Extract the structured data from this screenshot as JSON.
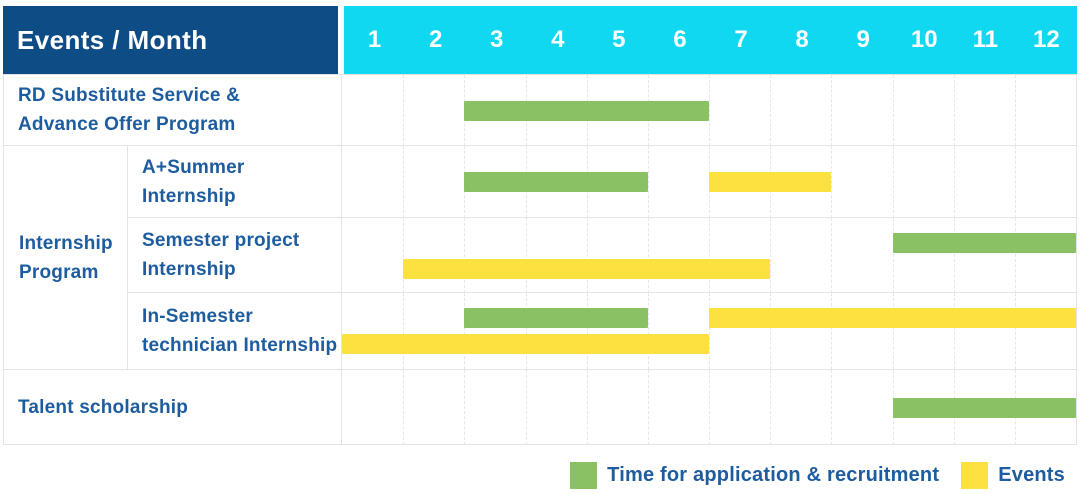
{
  "header": {
    "title": "Events / Month"
  },
  "colors": {
    "header_bg": "#0e4c86",
    "month_header_bg": "#10d8f1",
    "application_green": "#8ac164",
    "events_yellow": "#fde23f",
    "label_text": "#1d5c9e",
    "grid_line": "#e6e6e6"
  },
  "chart_data": {
    "type": "gantt",
    "title": "Events / Month",
    "x_axis": {
      "label": "Month",
      "ticks": [
        "1",
        "2",
        "3",
        "4",
        "5",
        "6",
        "7",
        "8",
        "9",
        "10",
        "11",
        "12"
      ],
      "range": [
        1,
        12
      ]
    },
    "group_labels": {
      "Internship Program": "Internship\nProgram"
    },
    "rows": [
      {
        "group": "",
        "label": "RD Substitute Service &\nAdvance Offer Program",
        "lines": 1,
        "bars": [
          {
            "series": "application",
            "start_month": 3,
            "end_month": 6,
            "line": 0
          }
        ]
      },
      {
        "group": "Internship Program",
        "label": "A+Summer\nInternship",
        "lines": 1,
        "bars": [
          {
            "series": "application",
            "start_month": 3,
            "end_month": 5,
            "line": 0
          },
          {
            "series": "events",
            "start_month": 7,
            "end_month": 8,
            "line": 0
          }
        ]
      },
      {
        "group": "Internship Program",
        "label": "Semester project\nInternship",
        "lines": 2,
        "bars": [
          {
            "series": "application",
            "start_month": 10,
            "end_month": 12,
            "line": 0
          },
          {
            "series": "events",
            "start_month": 2,
            "end_month": 7,
            "line": 1
          }
        ]
      },
      {
        "group": "Internship Program",
        "label": "In-Semester\ntechnician Internship",
        "lines": 2,
        "bars": [
          {
            "series": "application",
            "start_month": 3,
            "end_month": 5,
            "line": 0
          },
          {
            "series": "events",
            "start_month": 7,
            "end_month": 12,
            "line": 0
          },
          {
            "series": "events",
            "start_month": 1,
            "end_month": 6,
            "line": 1
          }
        ]
      },
      {
        "group": "",
        "label": "Talent scholarship",
        "lines": 1,
        "bars": [
          {
            "series": "application",
            "start_month": 10,
            "end_month": 12,
            "line": 0
          }
        ]
      }
    ],
    "legend": [
      {
        "label": "Time for application & recruitment",
        "color": "#8ac164",
        "series": "application"
      },
      {
        "label": "Events",
        "color": "#fde23f",
        "series": "events"
      }
    ],
    "legend_position": "bottom-right"
  }
}
